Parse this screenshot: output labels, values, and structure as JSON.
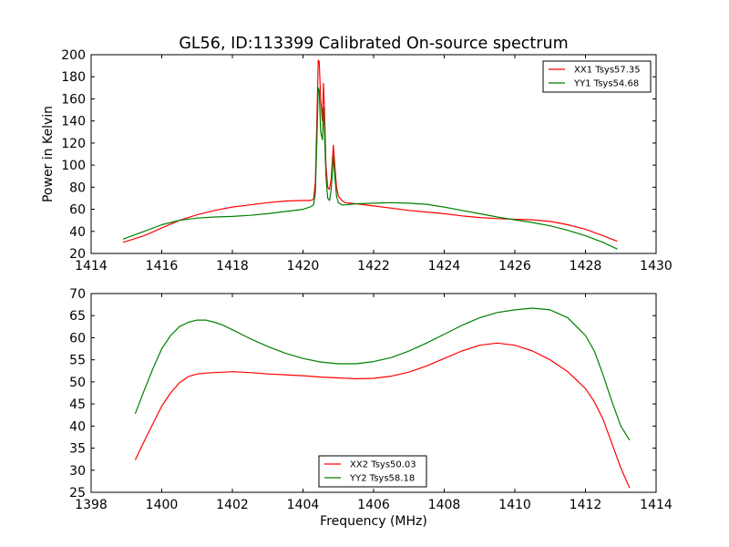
{
  "figure": {
    "title": "GL56, ID:113399 Calibrated On-source spectrum"
  },
  "chart_data": [
    {
      "type": "line",
      "title": "GL56, ID:113399 Calibrated On-source spectrum",
      "xlabel": "",
      "ylabel": "Power in Kelvin",
      "xlim": [
        1414,
        1430
      ],
      "ylim": [
        20,
        200
      ],
      "xticks": [
        1414,
        1416,
        1418,
        1420,
        1422,
        1424,
        1426,
        1428,
        1430
      ],
      "yticks": [
        20,
        40,
        60,
        80,
        100,
        120,
        140,
        160,
        180,
        200
      ],
      "grid": false,
      "legend": "upper right",
      "series": [
        {
          "name": "XX1 Tsys57.35",
          "color": "#ff0000",
          "x": [
            1414.9,
            1415.5,
            1416.0,
            1416.5,
            1417.0,
            1417.5,
            1418.0,
            1418.5,
            1419.0,
            1419.5,
            1420.0,
            1420.2,
            1420.3,
            1420.35,
            1420.4,
            1420.43,
            1420.46,
            1420.5,
            1420.55,
            1420.58,
            1420.61,
            1420.65,
            1420.7,
            1420.75,
            1420.8,
            1420.86,
            1420.9,
            1420.95,
            1421.0,
            1421.1,
            1421.2,
            1421.5,
            1422.0,
            1422.5,
            1423.0,
            1423.5,
            1424.0,
            1424.5,
            1425.0,
            1425.5,
            1426.0,
            1426.5,
            1427.0,
            1427.5,
            1428.0,
            1428.5,
            1428.9
          ],
          "y": [
            30,
            36,
            43,
            50,
            55,
            59,
            62,
            64,
            66,
            67.5,
            68,
            68,
            69,
            85,
            150,
            195,
            194,
            160,
            140,
            174,
            150,
            100,
            80,
            78,
            88,
            118,
            100,
            80,
            72,
            68,
            66,
            65,
            63,
            61,
            59,
            57.5,
            56,
            54,
            52.5,
            51.5,
            51,
            50.5,
            49,
            46,
            42,
            36,
            31
          ]
        },
        {
          "name": "YY1 Tsys54.68",
          "color": "#008000",
          "x": [
            1414.9,
            1415.5,
            1416.0,
            1416.5,
            1417.0,
            1417.5,
            1418.0,
            1418.5,
            1419.0,
            1419.5,
            1420.0,
            1420.2,
            1420.3,
            1420.35,
            1420.4,
            1420.43,
            1420.46,
            1420.5,
            1420.55,
            1420.58,
            1420.61,
            1420.65,
            1420.7,
            1420.75,
            1420.8,
            1420.86,
            1420.9,
            1420.95,
            1421.0,
            1421.1,
            1421.2,
            1421.5,
            1422.0,
            1422.5,
            1423.0,
            1423.5,
            1424.0,
            1424.5,
            1425.0,
            1425.5,
            1426.0,
            1426.5,
            1427.0,
            1427.5,
            1428.0,
            1428.5,
            1428.9
          ],
          "y": [
            33,
            40,
            46,
            50,
            52,
            53,
            53.5,
            54.5,
            56,
            58,
            60,
            62,
            64,
            75,
            130,
            170,
            168,
            130,
            123,
            152,
            130,
            90,
            70,
            68,
            78,
            108,
            90,
            72,
            66,
            64,
            64,
            65,
            65.5,
            66,
            65.5,
            64.5,
            62,
            59,
            56,
            53,
            50.5,
            48,
            45,
            41,
            36,
            30,
            24
          ]
        }
      ]
    },
    {
      "type": "line",
      "title": "",
      "xlabel": "Frequency (MHz)",
      "ylabel": "",
      "xlim": [
        1398,
        1414
      ],
      "ylim": [
        25,
        70
      ],
      "xticks": [
        1398,
        1400,
        1402,
        1404,
        1406,
        1408,
        1410,
        1412,
        1414
      ],
      "yticks": [
        25,
        30,
        35,
        40,
        45,
        50,
        55,
        60,
        65,
        70
      ],
      "grid": false,
      "legend": "lower center",
      "series": [
        {
          "name": "XX2 Tsys50.03",
          "color": "#ff0000",
          "x": [
            1399.25,
            1399.5,
            1399.75,
            1400.0,
            1400.25,
            1400.5,
            1400.75,
            1401.0,
            1401.25,
            1401.5,
            1401.75,
            1402.0,
            1402.5,
            1403.0,
            1403.5,
            1404.0,
            1404.5,
            1405.0,
            1405.5,
            1406.0,
            1406.5,
            1407.0,
            1407.5,
            1408.0,
            1408.5,
            1409.0,
            1409.5,
            1410.0,
            1410.5,
            1411.0,
            1411.5,
            1412.0,
            1412.25,
            1412.5,
            1412.75,
            1413.0,
            1413.25
          ],
          "y": [
            32.3,
            36.5,
            40.5,
            44.5,
            47.5,
            49.8,
            51.2,
            51.8,
            52.0,
            52.1,
            52.2,
            52.3,
            52.1,
            51.8,
            51.6,
            51.4,
            51.1,
            50.9,
            50.7,
            50.8,
            51.3,
            52.2,
            53.6,
            55.3,
            57.0,
            58.3,
            58.8,
            58.3,
            57.0,
            55.0,
            52.3,
            48.5,
            45.5,
            41.5,
            36.0,
            30.5,
            26.0
          ]
        },
        {
          "name": "YY2 Tsys58.18",
          "color": "#008000",
          "x": [
            1399.25,
            1399.5,
            1399.75,
            1400.0,
            1400.25,
            1400.5,
            1400.75,
            1401.0,
            1401.25,
            1401.5,
            1401.75,
            1402.0,
            1402.5,
            1403.0,
            1403.5,
            1404.0,
            1404.5,
            1405.0,
            1405.5,
            1406.0,
            1406.5,
            1407.0,
            1407.5,
            1408.0,
            1408.5,
            1409.0,
            1409.5,
            1410.0,
            1410.5,
            1411.0,
            1411.5,
            1412.0,
            1412.25,
            1412.5,
            1412.75,
            1413.0,
            1413.25
          ],
          "y": [
            42.8,
            48.0,
            53.0,
            57.5,
            60.5,
            62.5,
            63.5,
            64.0,
            64.0,
            63.5,
            62.8,
            61.8,
            59.8,
            58.0,
            56.5,
            55.3,
            54.5,
            54.1,
            54.1,
            54.6,
            55.5,
            57.0,
            58.8,
            60.8,
            62.8,
            64.5,
            65.7,
            66.3,
            66.7,
            66.3,
            64.5,
            60.5,
            57.0,
            51.5,
            45.5,
            40.0,
            36.8
          ]
        }
      ]
    }
  ]
}
